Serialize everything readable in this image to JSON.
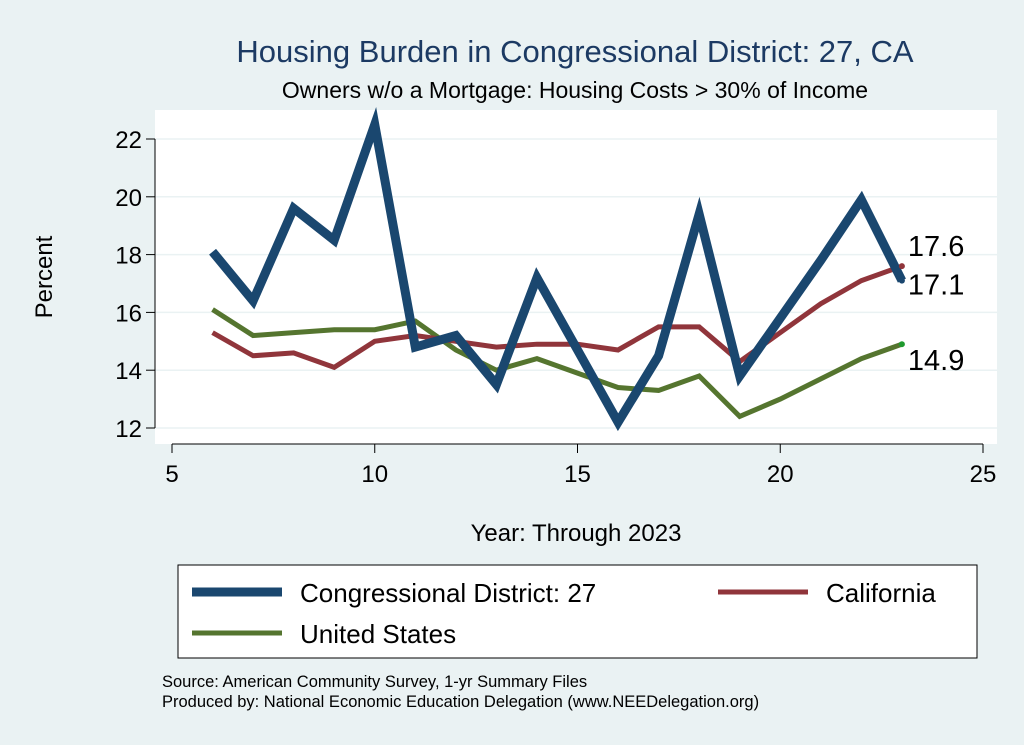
{
  "chart_data": {
    "type": "line",
    "title": "Housing Burden in Congressional District:  27, CA",
    "subtitle": "Owners w/o a Mortgage: Housing Costs > 30% of Income",
    "xlabel": "Year: Through 2023",
    "ylabel": "Percent",
    "xlim": [
      5,
      25
    ],
    "ylim": [
      12,
      22
    ],
    "xticks": [
      5,
      10,
      15,
      20,
      25
    ],
    "yticks": [
      12,
      14,
      16,
      18,
      20,
      22
    ],
    "grid": true,
    "legend": "bottom",
    "series": [
      {
        "name": "Congressional District:  27",
        "color": "#1a476f",
        "x": [
          6,
          7,
          8,
          9,
          10,
          11,
          12,
          13,
          14,
          15,
          16,
          17,
          18,
          19,
          20,
          21,
          22,
          23
        ],
        "y": [
          18.1,
          16.4,
          19.6,
          18.5,
          22.5,
          14.8,
          15.2,
          13.5,
          17.2,
          14.7,
          12.2,
          14.5,
          19.4,
          13.8,
          15.8,
          17.8,
          19.9,
          17.1
        ],
        "end_label": "17.1"
      },
      {
        "name": "California",
        "color": "#90353b",
        "x": [
          6,
          7,
          8,
          9,
          10,
          11,
          12,
          13,
          14,
          15,
          16,
          17,
          18,
          19,
          20,
          21,
          22,
          23
        ],
        "y": [
          15.3,
          14.5,
          14.6,
          14.1,
          15.0,
          15.2,
          15.0,
          14.8,
          14.9,
          14.9,
          14.7,
          15.5,
          15.5,
          14.3,
          15.3,
          16.3,
          17.1,
          17.6
        ],
        "end_label": "17.6"
      },
      {
        "name": "United States",
        "color": "#55752f",
        "x": [
          6,
          7,
          8,
          9,
          10,
          11,
          12,
          13,
          14,
          15,
          16,
          17,
          18,
          19,
          20,
          21,
          22,
          23
        ],
        "y": [
          16.1,
          15.2,
          15.3,
          15.4,
          15.4,
          15.7,
          14.7,
          14.0,
          14.4,
          13.9,
          13.4,
          13.3,
          13.8,
          12.4,
          13.0,
          13.7,
          14.4,
          14.9
        ],
        "end_label": "14.9"
      }
    ]
  },
  "source": {
    "line1": "Source: American Community Survey, 1-yr Summary Files",
    "line2": "Produced by: National Economic Education Delegation (www.NEEDelegation.org)"
  }
}
